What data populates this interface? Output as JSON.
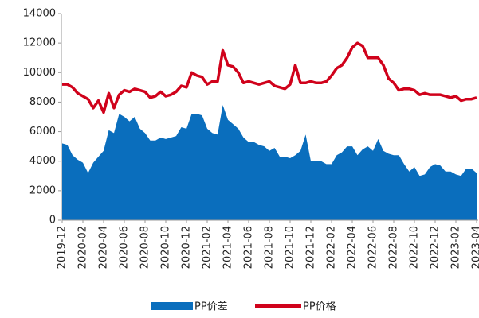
{
  "chart_data": {
    "type": "area-line",
    "categories": [
      "2019-12",
      null,
      null,
      null,
      "2020-02",
      null,
      null,
      null,
      "2020-04",
      null,
      null,
      null,
      "2020-06",
      null,
      null,
      null,
      "2020-08",
      null,
      null,
      null,
      "2020-10",
      null,
      null,
      null,
      "2020-12",
      null,
      null,
      null,
      "2021-02",
      null,
      null,
      null,
      "2021-04",
      null,
      null,
      null,
      "2021-06",
      null,
      null,
      null,
      "2021-08",
      null,
      null,
      null,
      "2021-10",
      null,
      null,
      null,
      "2021-12",
      null,
      null,
      null,
      "2022-02",
      null,
      null,
      null,
      "2022-04",
      null,
      null,
      null,
      "2022-06",
      null,
      null,
      null,
      "2022-08",
      null,
      null,
      null,
      "2022-10",
      null,
      null,
      null,
      "2022-12",
      null,
      null,
      null,
      "2023-02",
      null,
      null,
      null,
      "2023-04"
    ],
    "series": [
      {
        "name": "PP价差",
        "kind": "area",
        "color": "#0a6ebd",
        "values": [
          5200,
          5100,
          4400,
          4100,
          3900,
          3200,
          3900,
          4300,
          4700,
          6100,
          5900,
          7200,
          7000,
          6700,
          7000,
          6200,
          5900,
          5400,
          5400,
          5600,
          5500,
          5600,
          5700,
          6300,
          6200,
          7200,
          7200,
          7100,
          6200,
          5900,
          5800,
          7800,
          6800,
          6500,
          6200,
          5600,
          5300,
          5300,
          5100,
          5000,
          4700,
          4900,
          4300,
          4300,
          4200,
          4400,
          4700,
          5800,
          4000,
          4000,
          4000,
          3800,
          3800,
          4400,
          4600,
          5000,
          5000,
          4400,
          4800,
          5000,
          4700,
          5500,
          4700,
          4500,
          4400,
          4400,
          3800,
          3300,
          3600,
          3000,
          3100,
          3600,
          3800,
          3700,
          3300,
          3300,
          3100,
          3000,
          3500,
          3500,
          3200
        ]
      },
      {
        "name": "PP价格",
        "kind": "line",
        "color": "#d0021b",
        "values": [
          9200,
          9200,
          9000,
          8600,
          8400,
          8200,
          7600,
          8100,
          7300,
          8600,
          7600,
          8500,
          8800,
          8700,
          8900,
          8800,
          8700,
          8300,
          8400,
          8700,
          8400,
          8500,
          8700,
          9100,
          9000,
          10000,
          9800,
          9700,
          9200,
          9400,
          9400,
          11500,
          10500,
          10400,
          10000,
          9300,
          9400,
          9300,
          9200,
          9300,
          9400,
          9100,
          9000,
          8900,
          9200,
          10500,
          9300,
          9300,
          9400,
          9300,
          9300,
          9400,
          9800,
          10300,
          10500,
          11000,
          11700,
          12000,
          11800,
          11000,
          11000,
          11000,
          10500,
          9600,
          9300,
          8800,
          8900,
          8900,
          8800,
          8500,
          8600,
          8500,
          8500,
          8500,
          8400,
          8300,
          8400,
          8100,
          8200,
          8200,
          8300
        ]
      }
    ],
    "ylim": [
      0,
      14000
    ],
    "yticks": [
      0,
      2000,
      4000,
      6000,
      8000,
      10000,
      12000,
      14000
    ]
  }
}
